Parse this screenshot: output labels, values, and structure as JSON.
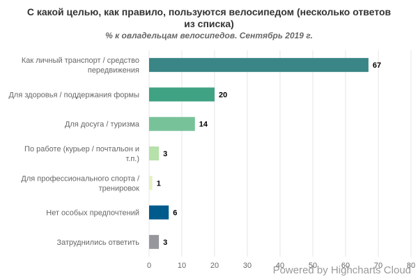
{
  "chart_data": {
    "type": "bar",
    "orientation": "horizontal",
    "title": "С какой целью, как правило, пользуются велосипедом (несколько ответов из списка)",
    "subtitle": "% к овладельцам велосипедов. Сентябрь 2019 г.",
    "categories": [
      [
        "Как личный транспорт / средство",
        "передвижения"
      ],
      [
        "Для здоровья / поддержания формы"
      ],
      [
        "Для досуга / туризма"
      ],
      [
        "По работе (курьер / почтальон и",
        "т.п.)"
      ],
      [
        "Для профессионального спорта /",
        "тренировок"
      ],
      [
        "Нет особых предпочтений"
      ],
      [
        "Затруднились ответить"
      ]
    ],
    "values": [
      67,
      20,
      14,
      3,
      1,
      6,
      3
    ],
    "colors": [
      "#3a8585",
      "#3fa383",
      "#78c29a",
      "#b7e1aa",
      "#e4f2c2",
      "#005a8c",
      "#96979c"
    ],
    "xlim": [
      0,
      80
    ],
    "xticks": [
      0,
      10,
      20,
      30,
      40,
      50,
      60,
      70,
      80
    ],
    "grid": "vertical",
    "legend": "none"
  },
  "credits": "Powered by Highcharts Cloud"
}
